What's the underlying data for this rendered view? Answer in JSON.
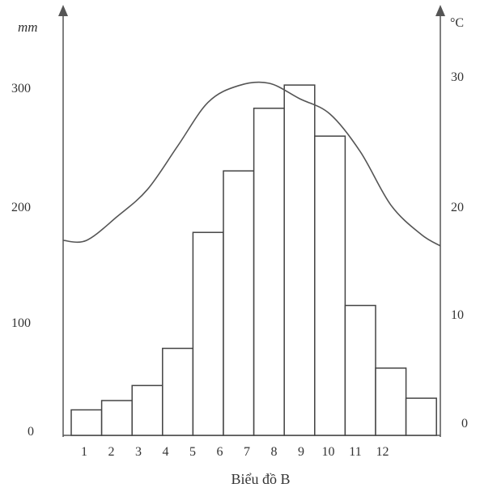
{
  "chart_data": {
    "type": "bar",
    "title": "Biểu đồ B",
    "categories": [
      "1",
      "2",
      "3",
      "4",
      "5",
      "6",
      "7",
      "8",
      "9",
      "10",
      "11",
      "12"
    ],
    "series": [
      {
        "type": "bar",
        "axis": "left",
        "values": [
          22,
          30,
          43,
          75,
          175,
          228,
          282,
          302,
          258,
          112,
          58,
          32
        ]
      },
      {
        "type": "line",
        "axis": "right",
        "values": [
          16.5,
          18.5,
          20.8,
          24.5,
          28.2,
          29.6,
          29.8,
          28.5,
          27.2,
          24.0,
          19.5,
          17.0
        ]
      }
    ],
    "left_axis": {
      "label": "mm",
      "ticks": [
        "300",
        "200",
        "100",
        "0"
      ],
      "range": [
        0,
        300
      ]
    },
    "right_axis": {
      "label": "°C",
      "ticks": [
        "30",
        "20",
        "10",
        "0"
      ],
      "range": [
        0,
        30
      ]
    },
    "grid": false,
    "colors": {
      "line": "#555555",
      "bar_fill": "#ffffff",
      "bar_stroke": "#444444"
    }
  }
}
